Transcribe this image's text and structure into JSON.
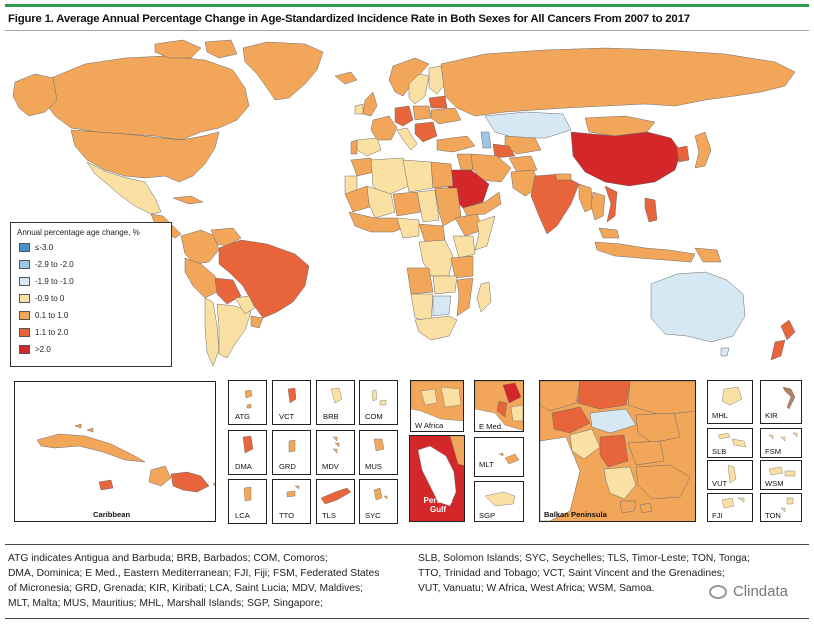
{
  "figure": {
    "title": "Figure 1. Average Annual Percentage Change in Age-Standardized Incidence Rate in Both Sexes for All Cancers From 2007 to 2017"
  },
  "colors": {
    "ocean": "#ffffff",
    "border": "#555555",
    "le_-3": "#4a90c8",
    "-2.9_-2": "#9cc8e8",
    "-1.9_-1": "#d6e8f4",
    "-0.9_0": "#fbe0a3",
    "0.1_1": "#f2a65a",
    "1.1_2": "#e8643a",
    "gt_2": "#d3272a",
    "accent_bar": "#2e9a4f"
  },
  "legend": {
    "title": "Annual percentage age change, %",
    "items": [
      {
        "label": "≤-3.0",
        "color": "#4a90c8"
      },
      {
        "label": "-2.9 to -2.0",
        "color": "#9cc8e8"
      },
      {
        "label": "-1.9 to -1.0",
        "color": "#d6e8f4"
      },
      {
        "label": "-0.9 to 0",
        "color": "#fbe0a3"
      },
      {
        "label": "0.1 to 1.0",
        "color": "#f2a65a"
      },
      {
        "label": "1.1 to 2.0",
        "color": "#e8643a"
      },
      {
        "label": ">2.0",
        "color": "#d3272a"
      }
    ]
  },
  "insets": {
    "caribbean": "Caribbean",
    "atg": "ATG",
    "vct": "VCT",
    "brb": "BRB",
    "com": "COM",
    "dma": "DMA",
    "grd": "GRD",
    "mdv": "MDV",
    "mus": "MUS",
    "lca": "LCA",
    "tto": "TTO",
    "tls": "TLS",
    "syc": "SYC",
    "w_africa": "W Africa",
    "e_med": "E Med.",
    "persian_gulf_1": "Persian",
    "persian_gulf_2": "Gulf",
    "mlt": "MLT",
    "sgp": "SGP",
    "balkan": "Balkan Peninsula",
    "mhl": "MHL",
    "kir": "KIR",
    "slb": "SLB",
    "fsm": "FSM",
    "vut": "VUT",
    "wsm": "WSM",
    "fji": "FJI",
    "ton": "TON"
  },
  "notes": {
    "left_1": "ATG indicates Antigua and Barbuda; BRB, Barbados; COM, Comoros;",
    "left_2": "DMA, Dominica; E Med., Eastern Mediterranean; FJI, Fiji; FSM, Federated States",
    "left_3": "of Micronesia; GRD, Grenada; KIR, Kiribati; LCA, Saint Lucia; MDV, Maldives;",
    "left_4": "MLT, Malta; MUS, Mauritius; MHL, Marshall Islands; SGP, Singapore;",
    "right_1": "SLB, Solomon Islands; SYC, Seychelles; TLS, Timor-Leste; TON, Tonga;",
    "right_2": "TTO, Trinidad and Tobago; VCT, Saint Vincent and the Grenadines;",
    "right_3": "VUT, Vanuatu; W Africa, West Africa; WSM, Samoa."
  },
  "watermark": "Clindata"
}
